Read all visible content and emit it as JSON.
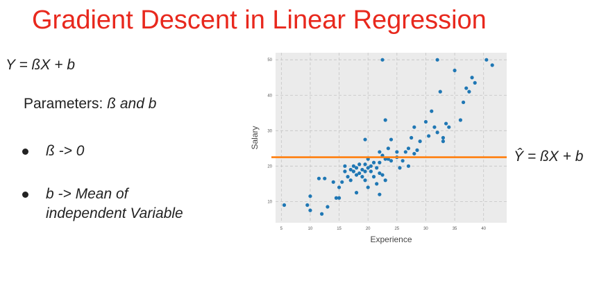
{
  "title": "Gradient Descent in Linear Regression",
  "equation": "Y = ßX + b",
  "parameters": {
    "label": "Parameters: ",
    "value": "ß and b"
  },
  "bullets": [
    {
      "text": "ß -> 0"
    },
    {
      "line1": "b -> Mean of",
      "line2": "independent Variable"
    }
  ],
  "fit_label": "Ŷ = ßX + b",
  "colors": {
    "title": "#e8281d",
    "points": "#1f77b4",
    "fit_line": "#ff7f0e",
    "plot_bg": "#ebebeb"
  },
  "chart_data": {
    "type": "scatter",
    "xlabel": "Experience",
    "ylabel": "Salary",
    "xlim": [
      4,
      44
    ],
    "ylim": [
      4,
      52
    ],
    "x_ticks": [
      5,
      10,
      15,
      20,
      25,
      30,
      35,
      40
    ],
    "y_ticks": [
      10,
      20,
      30,
      40,
      50
    ],
    "grid": true,
    "fit_line_y": 22.5,
    "points": [
      [
        5.5,
        9
      ],
      [
        9.5,
        9
      ],
      [
        10,
        11.5
      ],
      [
        10,
        7.5
      ],
      [
        11.5,
        16.5
      ],
      [
        12,
        6.5
      ],
      [
        12.5,
        16.5
      ],
      [
        13,
        8.5
      ],
      [
        14,
        15.5
      ],
      [
        14.5,
        11
      ],
      [
        15,
        14
      ],
      [
        15,
        11
      ],
      [
        15.5,
        15.5
      ],
      [
        16,
        18.5
      ],
      [
        16,
        20
      ],
      [
        16.5,
        17
      ],
      [
        17,
        19
      ],
      [
        17,
        16
      ],
      [
        17.5,
        18.5
      ],
      [
        17.5,
        20
      ],
      [
        18,
        17.5
      ],
      [
        18,
        19.5
      ],
      [
        18,
        12.5
      ],
      [
        18.5,
        20.5
      ],
      [
        18.5,
        18
      ],
      [
        19,
        19
      ],
      [
        19,
        17
      ],
      [
        19.5,
        20.5
      ],
      [
        19.5,
        18.5
      ],
      [
        19.5,
        16
      ],
      [
        19.5,
        27.5
      ],
      [
        20,
        19.5
      ],
      [
        20,
        14
      ],
      [
        20,
        22
      ],
      [
        20.5,
        20
      ],
      [
        20.5,
        18.5
      ],
      [
        21,
        17
      ],
      [
        21,
        21
      ],
      [
        21.5,
        19.5
      ],
      [
        21.5,
        15
      ],
      [
        22,
        24
      ],
      [
        22,
        21
      ],
      [
        22,
        18
      ],
      [
        22,
        12
      ],
      [
        22.5,
        23
      ],
      [
        22.5,
        17.5
      ],
      [
        22.5,
        50
      ],
      [
        23,
        22
      ],
      [
        23,
        33
      ],
      [
        23,
        16
      ],
      [
        23.5,
        25
      ],
      [
        23.5,
        22
      ],
      [
        24,
        21.5
      ],
      [
        24,
        27.5
      ],
      [
        25,
        22.5
      ],
      [
        25,
        24
      ],
      [
        25.5,
        19.5
      ],
      [
        26,
        21.5
      ],
      [
        26.5,
        24
      ],
      [
        27,
        25
      ],
      [
        27,
        20
      ],
      [
        27.5,
        28
      ],
      [
        28,
        23.5
      ],
      [
        28,
        31
      ],
      [
        28.5,
        24.5
      ],
      [
        29,
        27
      ],
      [
        30,
        32.5
      ],
      [
        30.5,
        28.5
      ],
      [
        31,
        35.5
      ],
      [
        31.5,
        31
      ],
      [
        32,
        29.5
      ],
      [
        32,
        50
      ],
      [
        32.5,
        41
      ],
      [
        33,
        28
      ],
      [
        33,
        27
      ],
      [
        33.5,
        32
      ],
      [
        34,
        31
      ],
      [
        35,
        47
      ],
      [
        36,
        33
      ],
      [
        36.5,
        38
      ],
      [
        37,
        42
      ],
      [
        37.5,
        41
      ],
      [
        38,
        45
      ],
      [
        38.5,
        43.5
      ],
      [
        40.5,
        50
      ],
      [
        41.5,
        48.5
      ]
    ]
  }
}
